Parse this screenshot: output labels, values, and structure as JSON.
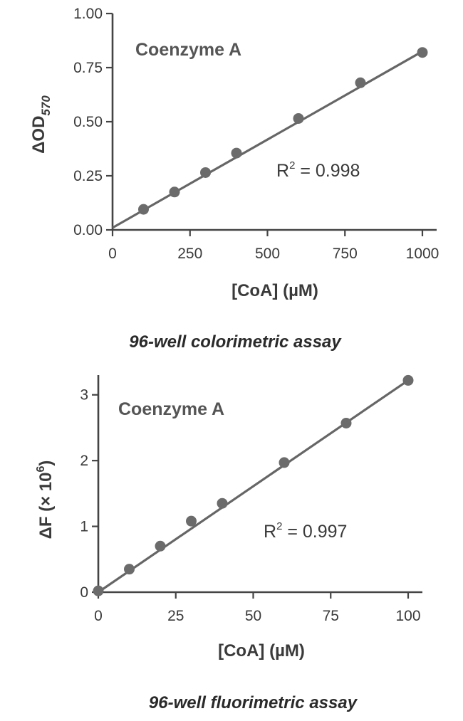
{
  "chart_data": [
    {
      "type": "scatter",
      "title": "Coenzyme A",
      "annotation": {
        "prefix": "R",
        "sup": "2",
        "suffix": " = 0.998"
      },
      "caption": "96-well colorimetric assay",
      "xlabel": "[CoA] (µM)",
      "ylabel": {
        "main": "ΔOD",
        "sub": "570"
      },
      "xlim": [
        0,
        1000
      ],
      "ylim": [
        0,
        1.0
      ],
      "xticks": [
        "0",
        "250",
        "500",
        "750",
        "1000"
      ],
      "xtick_values": [
        0,
        250,
        500,
        750,
        1000
      ],
      "yticks": [
        "0.00",
        "0.25",
        "0.50",
        "0.75",
        "1.00"
      ],
      "ytick_values": [
        0,
        0.25,
        0.5,
        0.75,
        1.0
      ],
      "points": {
        "x": [
          100,
          200,
          300,
          400,
          600,
          800,
          1000
        ],
        "y": [
          0.095,
          0.175,
          0.265,
          0.355,
          0.515,
          0.68,
          0.82
        ]
      },
      "fit": {
        "x": [
          0,
          1000
        ],
        "y": [
          0.01,
          0.825
        ]
      },
      "grid": false,
      "colors": {
        "points": "#6b6b6b",
        "line": "#666666"
      }
    },
    {
      "type": "scatter",
      "title": "Coenzyme A",
      "annotation": {
        "prefix": "R",
        "sup": "2",
        "suffix": " = 0.997"
      },
      "caption": "96-well fluorimetric assay",
      "xlabel": "[CoA] (µM)",
      "ylabel": {
        "main": "ΔF (× 10",
        "sup": "6",
        "end": ")"
      },
      "xlim": [
        0,
        100
      ],
      "ylim": [
        0,
        3.3
      ],
      "xticks": [
        "0",
        "25",
        "50",
        "75",
        "100"
      ],
      "xtick_values": [
        0,
        25,
        50,
        75,
        100
      ],
      "yticks": [
        "0",
        "1",
        "2",
        "3"
      ],
      "ytick_values": [
        0,
        1,
        2,
        3
      ],
      "points": {
        "x": [
          0,
          10,
          20,
          30,
          40,
          60,
          80,
          100
        ],
        "y": [
          0.02,
          0.35,
          0.7,
          1.08,
          1.35,
          1.97,
          2.57,
          3.22
        ]
      },
      "fit": {
        "x": [
          0,
          100
        ],
        "y": [
          0.0,
          3.22
        ]
      },
      "grid": false,
      "colors": {
        "points": "#6b6b6b",
        "line": "#666666"
      }
    }
  ]
}
